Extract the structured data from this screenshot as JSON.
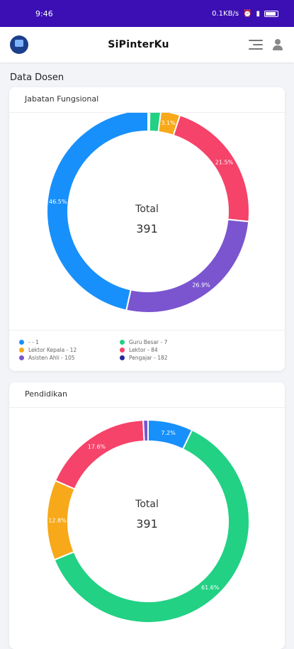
{
  "status_bar": {
    "time": "9:46",
    "net_speed": "0.1KB/s"
  },
  "app": {
    "title": "SiPinterKu"
  },
  "page": {
    "section_title": "Data Dosen"
  },
  "cards": [
    {
      "title": "Jabatan Fungsional",
      "center_label": "Total",
      "center_value": "391"
    },
    {
      "title": "Pendidikan",
      "center_label": "Total",
      "center_value": "391"
    }
  ],
  "chart_data": [
    {
      "type": "pie",
      "title": "Jabatan Fungsional",
      "total": 391,
      "slices": [
        {
          "label": "- - 1",
          "value": 1,
          "color": "#1f1f7a",
          "pct_label": ""
        },
        {
          "label": "Guru Besar - 7",
          "value": 7,
          "color": "#22d184",
          "pct_label": ""
        },
        {
          "label": "Lektor Kepala - 12",
          "value": 12,
          "color": "#f7a91a",
          "pct_label": "3.1%"
        },
        {
          "label": "Lektor - 84",
          "value": 84,
          "color": "#f5436a",
          "pct_label": "21.5%"
        },
        {
          "label": "Asisten Ahli - 105",
          "value": 105,
          "color": "#7a55cf",
          "pct_label": "26.9%"
        },
        {
          "label": "Pengajar - 182",
          "value": 182,
          "color": "#1890fb",
          "pct_label": "46.5%"
        }
      ],
      "legend": [
        {
          "label": "- - 1",
          "color": "#1890fb"
        },
        {
          "label": "Guru Besar - 7",
          "color": "#22d184"
        },
        {
          "label": "Lektor Kepala - 12",
          "color": "#f7a91a"
        },
        {
          "label": "Lektor - 84",
          "color": "#f5436a"
        },
        {
          "label": "Asisten Ahli - 105",
          "color": "#7a55cf"
        },
        {
          "label": "Pengajar - 182",
          "color": "#27289a"
        }
      ]
    },
    {
      "type": "pie",
      "title": "Pendidikan",
      "total": 391,
      "slices": [
        {
          "label": "",
          "value": 28,
          "color": "#1890fb",
          "pct_label": "7.2%"
        },
        {
          "label": "",
          "value": 241,
          "color": "#22d184",
          "pct_label": "61.6%"
        },
        {
          "label": "",
          "value": 50,
          "color": "#f7a91a",
          "pct_label": "12.8%"
        },
        {
          "label": "",
          "value": 69,
          "color": "#f5436a",
          "pct_label": "17.6%"
        },
        {
          "label": "",
          "value": 3,
          "color": "#7a55cf",
          "pct_label": ""
        }
      ]
    }
  ]
}
